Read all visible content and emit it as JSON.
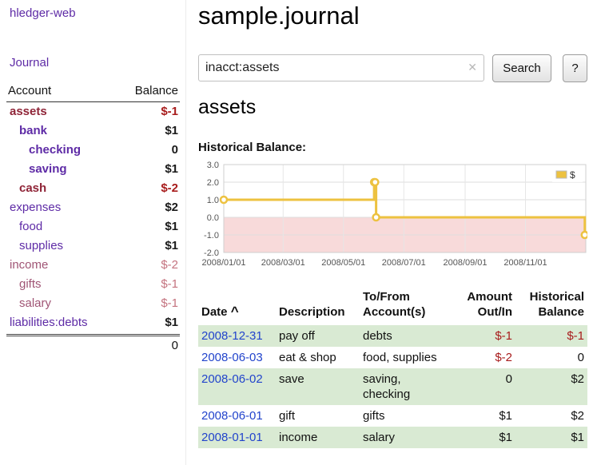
{
  "colors": {
    "link_purple": "#5e2ba6",
    "negative_red": "#a81c1c",
    "negative_soft_red": "#c4737f",
    "negative_account_name": "#8f2437",
    "row_green": "#d9ead3",
    "series_gold": "#edc240",
    "date_link_blue": "#2244cc"
  },
  "app_title": "hledger-web",
  "sidebar": {
    "journal_link": "Journal",
    "accounts": {
      "header": {
        "account": "Account",
        "balance": "Balance"
      },
      "rows": [
        {
          "name": "assets",
          "balance": "$-1"
        },
        {
          "name": "bank",
          "balance": "$1"
        },
        {
          "name": "checking",
          "balance": "0"
        },
        {
          "name": "saving",
          "balance": "$1"
        },
        {
          "name": "cash",
          "balance": "$-2"
        },
        {
          "name": "expenses",
          "balance": "$2"
        },
        {
          "name": "food",
          "balance": "$1"
        },
        {
          "name": "supplies",
          "balance": "$1"
        },
        {
          "name": "income",
          "balance": "$-2"
        },
        {
          "name": "gifts",
          "balance": "$-1"
        },
        {
          "name": "salary",
          "balance": "$-1"
        },
        {
          "name": "liabilities:debts",
          "balance": "$1"
        }
      ],
      "total": "0"
    }
  },
  "main": {
    "title": "sample.journal",
    "search": {
      "value": "inacct:assets",
      "clear": "✕",
      "search_button": "Search",
      "help_button": "?"
    },
    "account_heading": "assets",
    "chart_label": "Historical Balance:"
  },
  "chart_data": {
    "type": "line",
    "title": "Historical Balance",
    "legend": [
      {
        "label": "$",
        "color": "#edc240"
      }
    ],
    "legend_position": "top-right",
    "grid": true,
    "ylim": [
      -2.0,
      3.0
    ],
    "yticks": [
      3.0,
      2.0,
      1.0,
      0.0,
      -1.0,
      -2.0
    ],
    "x_range": [
      "2008-01-01",
      "2009-01-01"
    ],
    "xticks": [
      "2008/01/01",
      "2008/03/01",
      "2008/05/01",
      "2008/07/01",
      "2008/09/01",
      "2008/11/01"
    ],
    "negative_region_fill": "#f8dada",
    "series": [
      {
        "name": "$",
        "color": "#edc240",
        "step": true,
        "points": [
          {
            "date": "2008-01-01",
            "value": 1
          },
          {
            "date": "2008-06-01",
            "value": 2
          },
          {
            "date": "2008-06-02",
            "value": 2
          },
          {
            "date": "2008-06-03",
            "value": 0
          },
          {
            "date": "2008-12-31",
            "value": -1
          }
        ]
      }
    ]
  },
  "register": {
    "headers": {
      "date": "Date",
      "sort_indicator": "^",
      "description": "Description",
      "accounts_line1": "To/From",
      "accounts_line2": "Account(s)",
      "amount_line1": "Amount",
      "amount_line2": "Out/In",
      "balance_line1": "Historical",
      "balance_line2": "Balance"
    },
    "rows": [
      {
        "date": "2008-12-31",
        "description": "pay off",
        "accounts": "debts",
        "amount": "$-1",
        "balance": "$-1"
      },
      {
        "date": "2008-06-03",
        "description": "eat & shop",
        "accounts": "food, supplies",
        "amount": "$-2",
        "balance": "0"
      },
      {
        "date": "2008-06-02",
        "description": "save",
        "accounts": "saving, checking",
        "amount": "0",
        "balance": "$2"
      },
      {
        "date": "2008-06-01",
        "description": "gift",
        "accounts": "gifts",
        "amount": "$1",
        "balance": "$2"
      },
      {
        "date": "2008-01-01",
        "description": "income",
        "accounts": "salary",
        "amount": "$1",
        "balance": "$1"
      }
    ]
  }
}
